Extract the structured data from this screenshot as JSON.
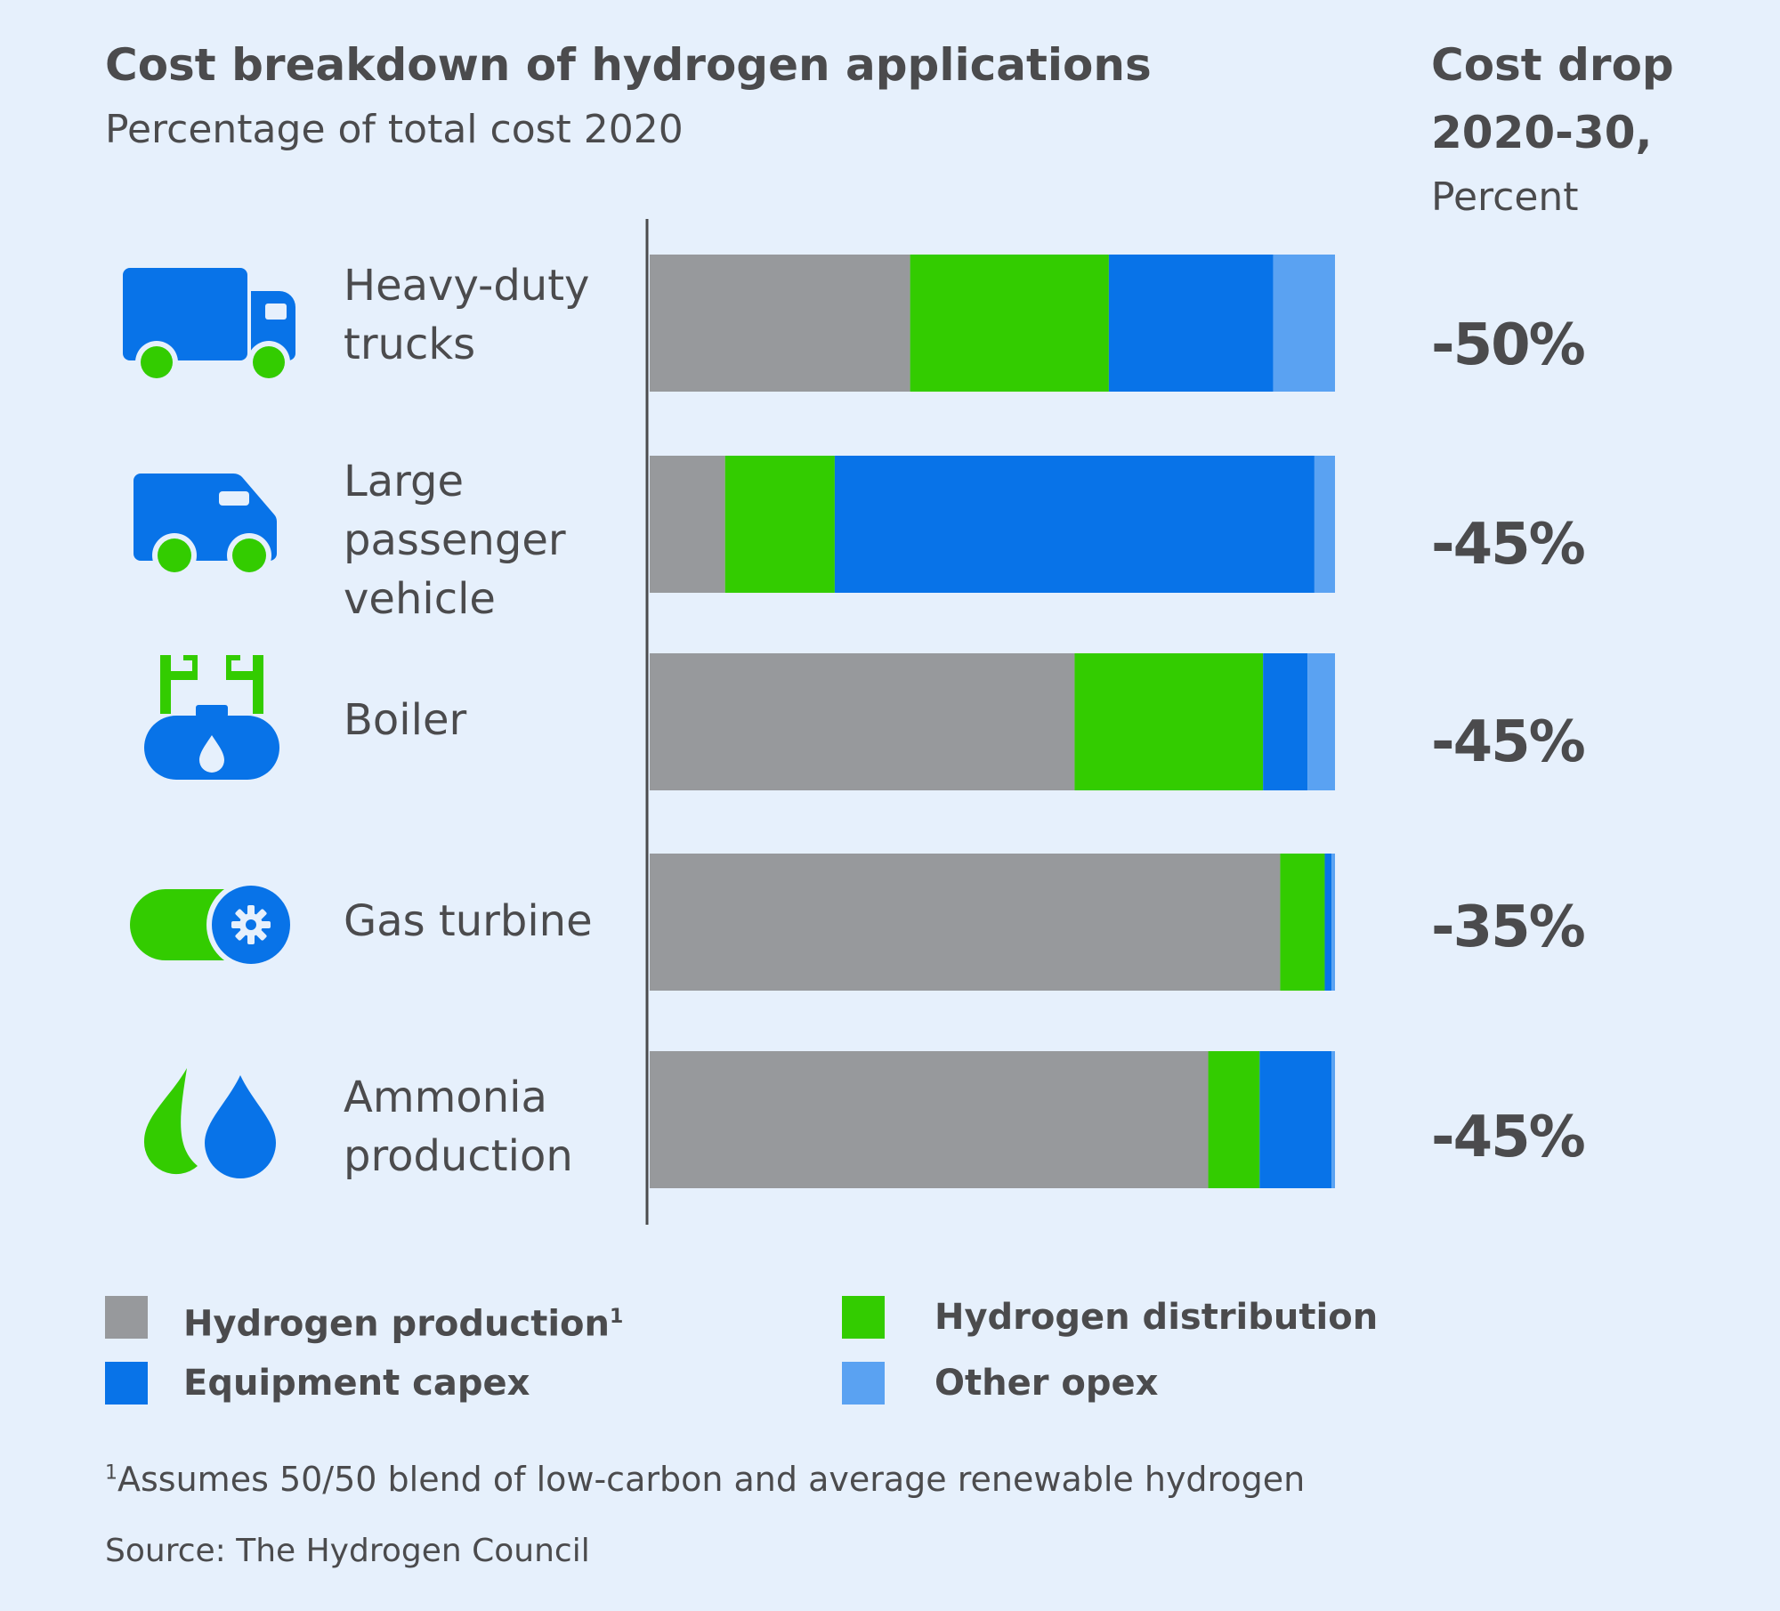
{
  "header": {
    "title": "Cost breakdown of hydrogen applications",
    "subtitle": "Percentage of total cost 2020",
    "right_line1": "Cost drop",
    "right_line2": "2020-30,",
    "right_line3": "Percent"
  },
  "chart_data": {
    "type": "bar",
    "orientation": "horizontal",
    "stacked": true,
    "title": "Cost breakdown of hydrogen applications",
    "subtitle": "Percentage of total cost 2020",
    "xlim": [
      0,
      100
    ],
    "categories": [
      "Heavy-duty\ntrucks",
      "Large\npassenger\nvehicle",
      "Boiler",
      "Gas turbine",
      "Ammonia\nproduction"
    ],
    "series": [
      {
        "name": "Hydrogen production",
        "color": "#97999c",
        "values": [
          38,
          11,
          62,
          92,
          81.5
        ]
      },
      {
        "name": "Hydrogen distribution",
        "color": "#33cc00",
        "values": [
          29,
          16,
          27.5,
          6.5,
          7.5
        ]
      },
      {
        "name": "Equipment capex",
        "color": "#0873e8",
        "values": [
          24,
          70,
          6.5,
          1,
          10.5
        ]
      },
      {
        "name": "Other opex",
        "color": "#5aa2f2",
        "values": [
          9,
          3,
          4,
          0.5,
          0.5
        ]
      }
    ],
    "cost_drop": [
      "-50%",
      "-45%",
      "-45%",
      "-35%",
      "-45%"
    ],
    "grid": false,
    "legend_position": "bottom"
  },
  "legend": {
    "production_label": "Hydrogen production",
    "production_sup": "1",
    "distribution_label": "Hydrogen distribution",
    "capex_label": "Equipment capex",
    "opex_label": "Other opex"
  },
  "icons": [
    "truck-icon",
    "van-icon",
    "boiler-icon",
    "gas-turbine-icon",
    "ammonia-drops-icon"
  ],
  "footnote": {
    "marker": "1",
    "text": "Assumes 50/50 blend of low-carbon and average renewable hydrogen"
  },
  "source": "Source: The Hydrogen Council"
}
